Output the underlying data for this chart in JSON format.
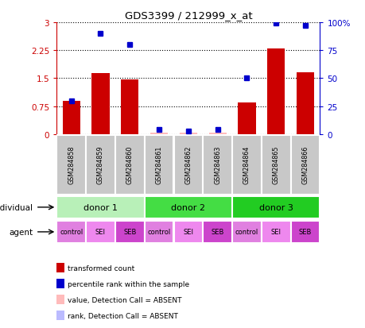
{
  "title": "GDS3399 / 212999_x_at",
  "samples": [
    "GSM284858",
    "GSM284859",
    "GSM284860",
    "GSM284861",
    "GSM284862",
    "GSM284863",
    "GSM284864",
    "GSM284865",
    "GSM284866"
  ],
  "red_values": [
    0.9,
    1.63,
    1.47,
    0.04,
    0.04,
    0.04,
    0.85,
    2.3,
    1.65
  ],
  "blue_values": [
    30.0,
    90.0,
    80.0,
    4.0,
    2.5,
    4.0,
    50.0,
    99.0,
    97.0
  ],
  "red_absent": [
    false,
    false,
    false,
    true,
    true,
    true,
    false,
    false,
    false
  ],
  "blue_absent": [
    false,
    false,
    false,
    false,
    false,
    false,
    false,
    false,
    false
  ],
  "ylim_left": [
    0,
    3
  ],
  "ylim_right": [
    0,
    100
  ],
  "yticks_left": [
    0,
    0.75,
    1.5,
    2.25,
    3
  ],
  "yticks_right": [
    0,
    25,
    50,
    75,
    100
  ],
  "ytick_labels_left": [
    "0",
    "0.75",
    "1.5",
    "2.25",
    "3"
  ],
  "ytick_labels_right": [
    "0",
    "25",
    "50",
    "75",
    "100%"
  ],
  "left_color": "#cc0000",
  "right_color": "#0000cc",
  "bar_width": 0.6,
  "donors": [
    {
      "label": "donor 1",
      "start": 0,
      "end": 3,
      "color": "#b8f0b8"
    },
    {
      "label": "donor 2",
      "start": 3,
      "end": 6,
      "color": "#44dd44"
    },
    {
      "label": "donor 3",
      "start": 6,
      "end": 9,
      "color": "#22cc22"
    }
  ],
  "agents": [
    "control",
    "SEI",
    "SEB",
    "control",
    "SEI",
    "SEB",
    "control",
    "SEI",
    "SEB"
  ],
  "agent_colors": [
    "#e080e0",
    "#ee88ee",
    "#ee44ee",
    "#e080e0",
    "#ee88ee",
    "#ee44ee",
    "#e080e0",
    "#ee88ee",
    "#ee44ee"
  ],
  "sample_box_color": "#c8c8c8",
  "individual_label": "individual",
  "agent_label": "agent",
  "legend_items": [
    {
      "label": "transformed count",
      "color": "#cc0000"
    },
    {
      "label": "percentile rank within the sample",
      "color": "#0000cc"
    },
    {
      "label": "value, Detection Call = ABSENT",
      "color": "#ffbbbb"
    },
    {
      "label": "rank, Detection Call = ABSENT",
      "color": "#bbbbff"
    }
  ]
}
